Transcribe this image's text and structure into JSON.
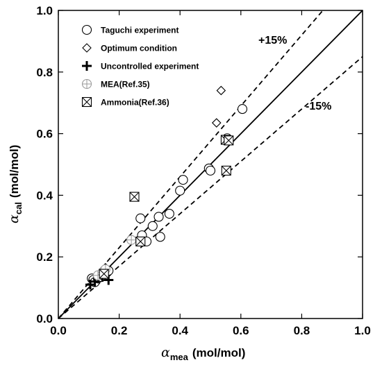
{
  "chart_data": {
    "type": "scatter",
    "title": "",
    "xlabel": {
      "symbol": "α",
      "subscript": "mea",
      "unit": "(mol/mol)"
    },
    "ylabel": {
      "symbol": "α",
      "subscript": "cal",
      "unit": "(mol/mol)"
    },
    "xlim": [
      0,
      1.0
    ],
    "ylim": [
      0,
      1.0
    ],
    "xticks": [
      "0.0",
      "0.2",
      "0.4",
      "0.6",
      "0.8",
      "1.0"
    ],
    "yticks": [
      "0.0",
      "0.2",
      "0.4",
      "0.6",
      "0.8",
      "1.0"
    ],
    "grid": false,
    "legend_position": "top-left",
    "reference_lines": [
      {
        "label": "",
        "slope": 1.0,
        "style": "solid"
      },
      {
        "label": "+15%",
        "slope": 1.15,
        "style": "dashed"
      },
      {
        "label": "-15%",
        "slope": 0.85,
        "style": "dashed"
      }
    ],
    "series": [
      {
        "name": "Taguchi experiment",
        "marker": "circle",
        "points": [
          [
            0.11,
            0.13
          ],
          [
            0.115,
            0.125
          ],
          [
            0.12,
            0.118
          ],
          [
            0.13,
            0.13
          ],
          [
            0.14,
            0.135
          ],
          [
            0.15,
            0.145
          ],
          [
            0.16,
            0.15
          ],
          [
            0.165,
            0.155
          ],
          [
            0.27,
            0.325
          ],
          [
            0.275,
            0.27
          ],
          [
            0.29,
            0.25
          ],
          [
            0.31,
            0.3
          ],
          [
            0.33,
            0.33
          ],
          [
            0.335,
            0.265
          ],
          [
            0.365,
            0.34
          ],
          [
            0.4,
            0.415
          ],
          [
            0.41,
            0.45
          ],
          [
            0.495,
            0.487
          ],
          [
            0.5,
            0.48
          ],
          [
            0.555,
            0.585
          ],
          [
            0.605,
            0.68
          ]
        ]
      },
      {
        "name": "Optimum condition",
        "marker": "diamond",
        "points": [
          [
            0.52,
            0.635
          ],
          [
            0.535,
            0.74
          ],
          [
            0.155,
            0.165
          ],
          [
            0.14,
            0.14
          ]
        ]
      },
      {
        "name": "Uncontrolled experiment",
        "marker": "plus",
        "points": [
          [
            0.105,
            0.11
          ],
          [
            0.12,
            0.12
          ],
          [
            0.165,
            0.125
          ],
          [
            0.145,
            0.135
          ]
        ]
      },
      {
        "name": "MEA(Ref.35)",
        "marker": "circle-cross",
        "points": [
          [
            0.24,
            0.255
          ],
          [
            0.13,
            0.14
          ],
          [
            0.145,
            0.15
          ],
          [
            0.15,
            0.155
          ],
          [
            0.155,
            0.16
          ]
        ]
      },
      {
        "name": "Ammonia(Ref.36)",
        "marker": "box-x",
        "points": [
          [
            0.25,
            0.395
          ],
          [
            0.55,
            0.58
          ],
          [
            0.56,
            0.578
          ],
          [
            0.552,
            0.48
          ],
          [
            0.27,
            0.25
          ],
          [
            0.15,
            0.145
          ]
        ]
      }
    ]
  }
}
